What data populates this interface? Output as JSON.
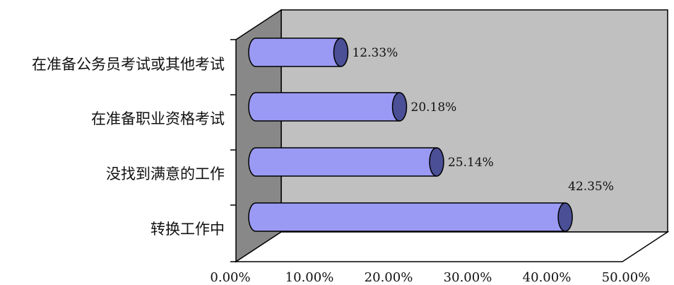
{
  "chart_data": {
    "type": "bar",
    "orientation": "horizontal",
    "style": "3d-cylinder",
    "categories": [
      "在准备公务员考试或其他考试",
      "在准备职业资格考试",
      "没找到满意的工作",
      "转换工作中"
    ],
    "values": [
      12.33,
      20.18,
      25.14,
      42.35
    ],
    "data_labels": [
      "12.33%",
      "20.18%",
      "25.14%",
      "42.35%"
    ],
    "xlim": [
      0,
      50
    ],
    "x_ticks": [
      "0.00%",
      "10.00%",
      "20.00%",
      "30.00%",
      "40.00%",
      "50.00%"
    ],
    "title": "",
    "xlabel": "",
    "ylabel": "",
    "grid": false,
    "legend": "none",
    "colors": {
      "bar_body": "#9a9af5",
      "bar_cap": "#4a4f96",
      "back_wall": "#c0c0c0",
      "side_wall": "#888888",
      "floor": "#ffffff"
    }
  }
}
